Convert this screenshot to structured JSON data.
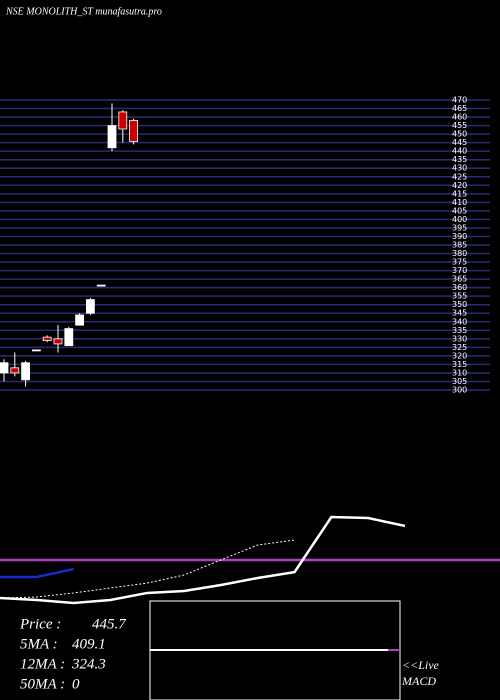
{
  "chart_data": {
    "type": "candlestick",
    "title": "NSE MONOLITH_ST munafasutra.pro",
    "categories": [
      null,
      null,
      null,
      null,
      null,
      null,
      null,
      null,
      null,
      null,
      null,
      null,
      null
    ],
    "open": [
      310,
      313,
      306,
      323.5,
      331,
      330,
      326,
      338,
      345,
      361.5,
      442,
      463,
      458
    ],
    "high": [
      318,
      322,
      317,
      323.5,
      332,
      338,
      337,
      345,
      354,
      361.5,
      468,
      464,
      459
    ],
    "low": [
      305,
      308,
      302,
      323.5,
      328,
      322,
      326,
      338,
      344,
      361.5,
      440,
      445,
      444
    ],
    "close": [
      316,
      310,
      316,
      323.5,
      329,
      327,
      336,
      344,
      353,
      361.5,
      455,
      453,
      445.7
    ],
    "up_color": "#ffffff",
    "down_color": "#cc0000",
    "grid_color": "#2a2a7a",
    "ylim": [
      300,
      470
    ],
    "yticks": [
      300,
      305,
      310,
      315,
      320,
      325,
      330,
      335,
      340,
      345,
      350,
      355,
      360,
      365,
      370,
      375,
      380,
      385,
      390,
      395,
      400,
      405,
      410,
      415,
      420,
      425,
      430,
      435,
      440,
      445,
      450,
      455,
      460,
      465,
      470
    ],
    "indicator": {
      "ylim": [
        0,
        100
      ],
      "xlim": [
        0,
        11
      ],
      "hline": {
        "value": 45.5,
        "color": "#b040c0"
      },
      "series": [
        {
          "style": "solid",
          "color": "#ffffff",
          "x": [
            0,
            1,
            2,
            3,
            4,
            5,
            6,
            7,
            8,
            9,
            10,
            11
          ],
          "values": [
            10.9,
            9.1,
            6.4,
            9.1,
            15.5,
            17.3,
            22.7,
            29.1,
            34.5,
            84.5,
            83.6,
            76.4
          ]
        },
        {
          "style": "dotted",
          "color": "#ffffff",
          "x": [
            0,
            1,
            2,
            3,
            4,
            5,
            6,
            7,
            8
          ],
          "values": [
            10.9,
            11.8,
            15.5,
            20,
            24.5,
            31.8,
            45.5,
            59.1,
            63.6
          ]
        },
        {
          "style": "solid",
          "color": "#1a2ad0",
          "x": [
            0,
            1,
            2
          ],
          "values": [
            30,
            30,
            37.3
          ]
        }
      ]
    },
    "macd": {
      "ylim": [
        -1,
        1
      ],
      "values": [
        0,
        0
      ],
      "color": "#ffffff",
      "signal_color": "#b040c0"
    },
    "info": [
      {
        "label": "Price   :",
        "value": 445.7
      },
      {
        "label": "5MA :",
        "value": 409.1
      },
      {
        "label": "12MA :",
        "value": 324.3
      },
      {
        "label": "50MA :",
        "value": 0
      }
    ],
    "live_label": "<<Live",
    "macd_label": "MACD"
  }
}
